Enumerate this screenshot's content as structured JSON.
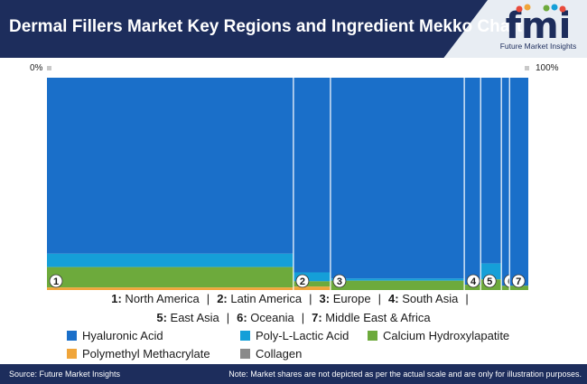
{
  "header": {
    "title": "Dermal Fillers Market Key Regions and Ingredient Mekko Chart",
    "logo_text": "fmi",
    "logo_subtitle": "Future Market Insights"
  },
  "axis": {
    "left_label": "0%",
    "right_label": "100%"
  },
  "colors": {
    "Hyaluronic Acid": "#1a6fc9",
    "Poly-L-Lactic Acid": "#159fd8",
    "Calcium Hydroxylapatite": "#6daa3c",
    "Polymethyl Methacrylate": "#f0a53a",
    "Collagen": "#8a8a8a",
    "brand_navy": "#1d2d5c"
  },
  "chart_data": {
    "type": "mekko",
    "title": "Dermal Fillers Market Key Regions and Ingredient Mekko Chart",
    "xlabel": "",
    "ylabel": "",
    "legend_position": "bottom",
    "series_names": [
      "Hyaluronic Acid",
      "Poly-L-Lactic Acid",
      "Calcium Hydroxylapatite",
      "Polymethyl Methacrylate",
      "Collagen"
    ],
    "segments": [
      {
        "id": "1",
        "region": "North America",
        "width_pct": 51.2,
        "shares": [
          82.9,
          6.3,
          9.6,
          1.2,
          0.0
        ]
      },
      {
        "id": "2",
        "region": "Latin America",
        "width_pct": 7.7,
        "shares": [
          91.7,
          4.2,
          2.5,
          1.6,
          0.0
        ]
      },
      {
        "id": "3",
        "region": "Europe",
        "width_pct": 27.8,
        "shares": [
          94.6,
          1.0,
          4.4,
          0.0,
          0.0
        ]
      },
      {
        "id": "4",
        "region": "South Asia",
        "width_pct": 3.4,
        "shares": [
          97.5,
          0.0,
          2.5,
          0.0,
          0.0
        ]
      },
      {
        "id": "5",
        "region": "East Asia",
        "width_pct": 4.3,
        "shares": [
          87.5,
          7.5,
          5.0,
          0.0,
          0.0
        ]
      },
      {
        "id": "6",
        "region": "Oceania",
        "width_pct": 1.7,
        "shares": [
          98.0,
          0.0,
          2.0,
          0.0,
          0.0
        ]
      },
      {
        "id": "7",
        "region": "Middle East & Africa",
        "width_pct": 3.9,
        "shares": [
          98.0,
          0.0,
          2.0,
          0.0,
          0.0
        ]
      }
    ]
  },
  "region_legend": {
    "line1": [
      {
        "num": "1:",
        "name": "North America"
      },
      {
        "num": "2:",
        "name": "Latin America"
      },
      {
        "num": "3:",
        "name": "Europe"
      },
      {
        "num": "4:",
        "name": "South Asia"
      }
    ],
    "line2": [
      {
        "num": "5:",
        "name": "East Asia"
      },
      {
        "num": "6:",
        "name": "Oceania"
      },
      {
        "num": "7:",
        "name": "Middle East & Africa"
      }
    ],
    "separator": "|"
  },
  "ingredient_legend": [
    {
      "label": "Hyaluronic Acid",
      "color": "#1a6fc9"
    },
    {
      "label": "Poly-L-Lactic Acid",
      "color": "#159fd8"
    },
    {
      "label": "Calcium Hydroxylapatite",
      "color": "#6daa3c"
    },
    {
      "label": "Polymethyl Methacrylate",
      "color": "#f0a53a"
    },
    {
      "label": "Collagen",
      "color": "#8a8a8a"
    }
  ],
  "footer": {
    "source": "Source: Future Market Insights",
    "note": "Note: Market shares are not depicted as per the actual scale and are only for illustration purposes."
  }
}
